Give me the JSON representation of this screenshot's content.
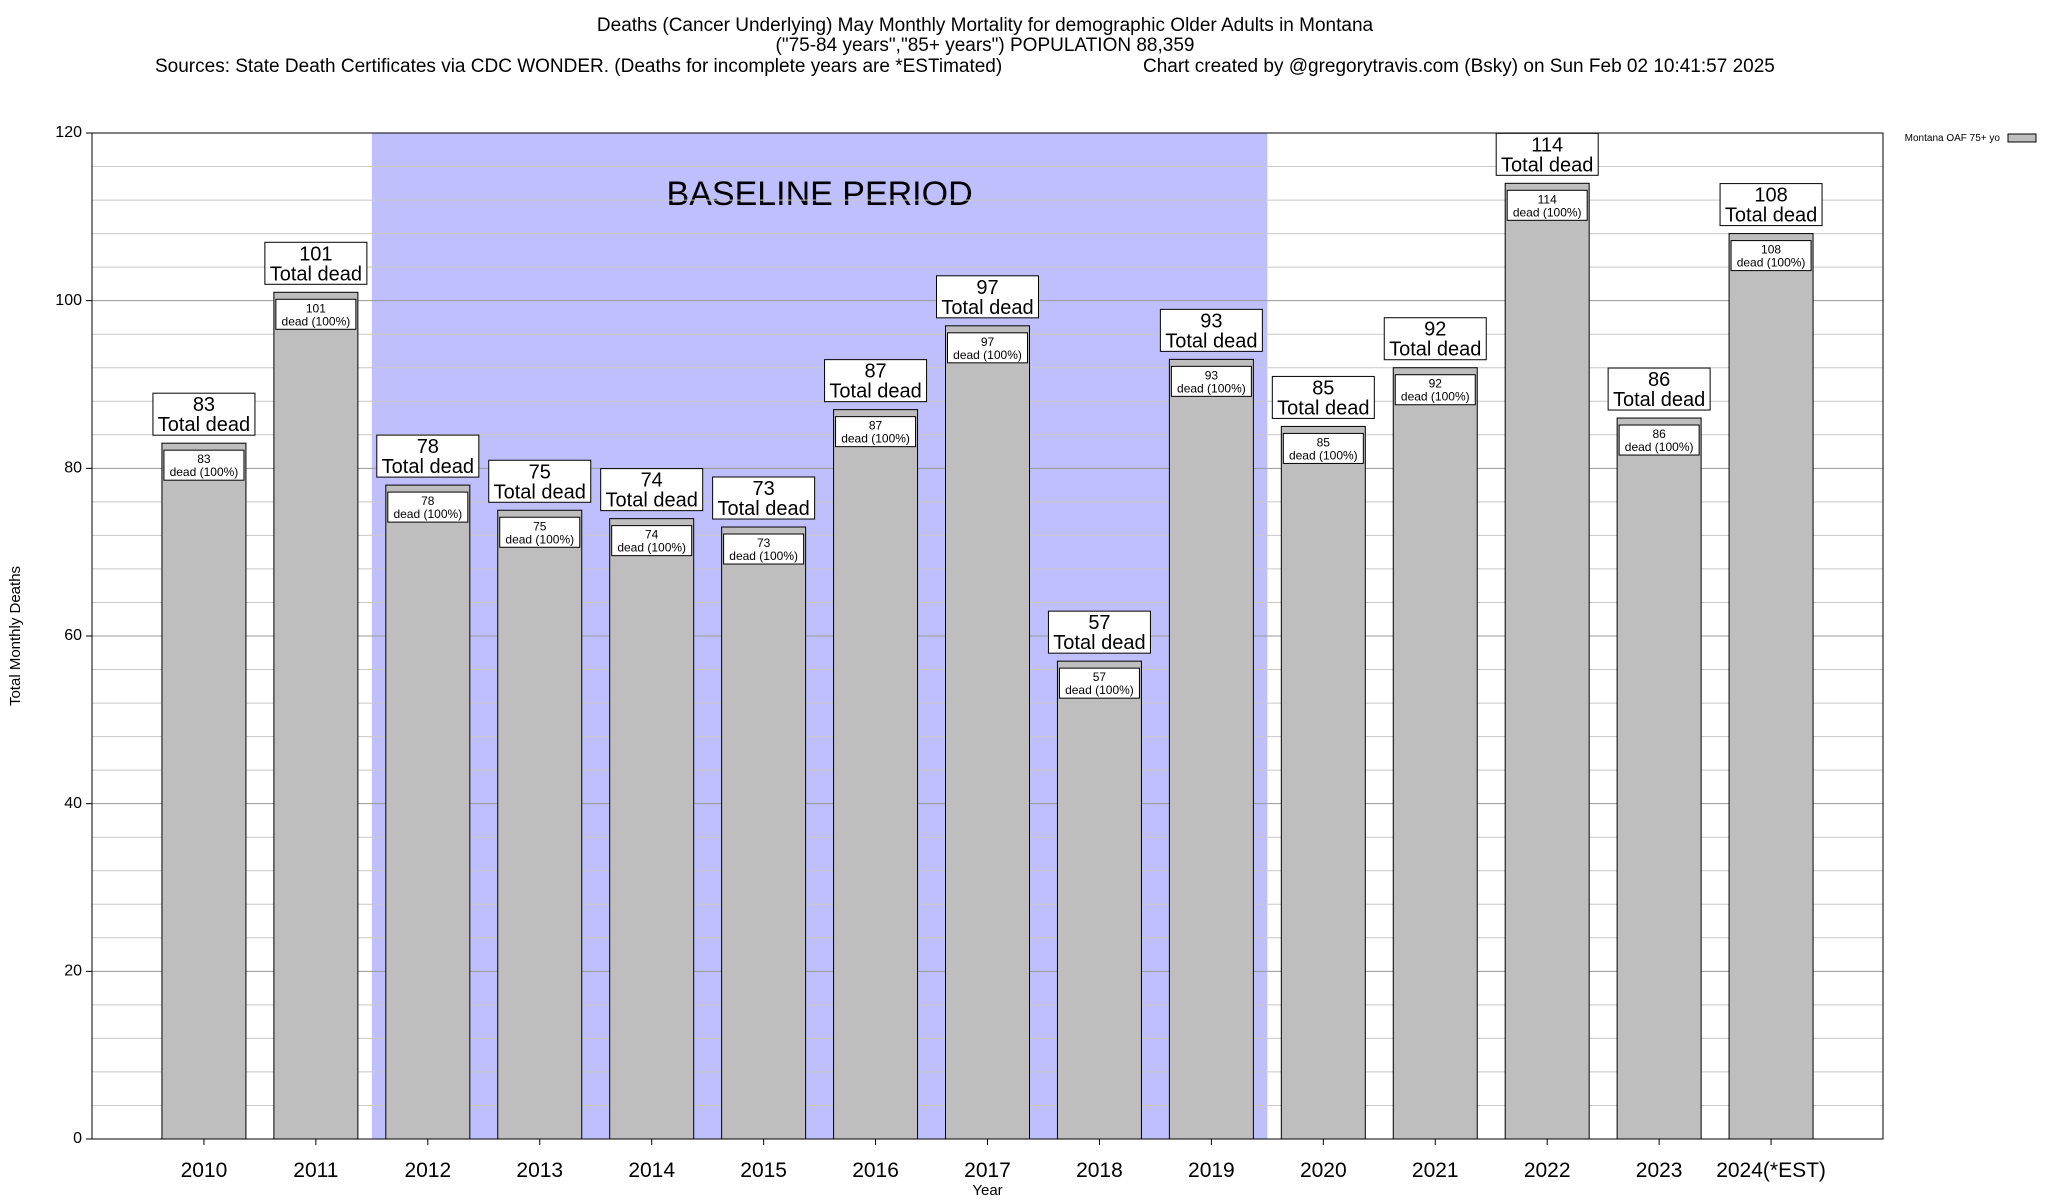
{
  "header": {
    "title_line1": "Deaths (Cancer Underlying) May Monthly Mortality for demographic Older Adults in Montana",
    "title_line2": "(\"75-84 years\",\"85+ years\") POPULATION 88,359",
    "sources": "Sources: State Death Certificates via CDC WONDER. (Deaths for incomplete years are *ESTimated)",
    "credit": "Chart created by @gregorytravis.com (Bsky) on Sun Feb 02 10:41:57 2025"
  },
  "chart_data": {
    "type": "bar",
    "xlabel": "Year",
    "ylabel": "Total Monthly Deaths",
    "ylim": [
      0,
      120
    ],
    "yticks": [
      0,
      20,
      40,
      60,
      80,
      100,
      120
    ],
    "categories": [
      "2010",
      "2011",
      "2012",
      "2013",
      "2014",
      "2015",
      "2016",
      "2017",
      "2018",
      "2019",
      "2020",
      "2021",
      "2022",
      "2023",
      "2024(*EST)"
    ],
    "series": [
      {
        "name": "Montana OAF 75+ yo",
        "values": [
          83,
          101,
          78,
          75,
          74,
          73,
          87,
          97,
          57,
          93,
          85,
          92,
          114,
          86,
          108
        ]
      }
    ],
    "total_label": "Total dead",
    "segment_label": "dead (100%)",
    "baseline": {
      "label": "BASELINE PERIOD",
      "from": "2012",
      "to": "2019"
    },
    "grid": true,
    "legend_position": "top-right",
    "colors": {
      "bar_fill": "#bebebe",
      "baseline_fill": "#bfbffe"
    }
  }
}
